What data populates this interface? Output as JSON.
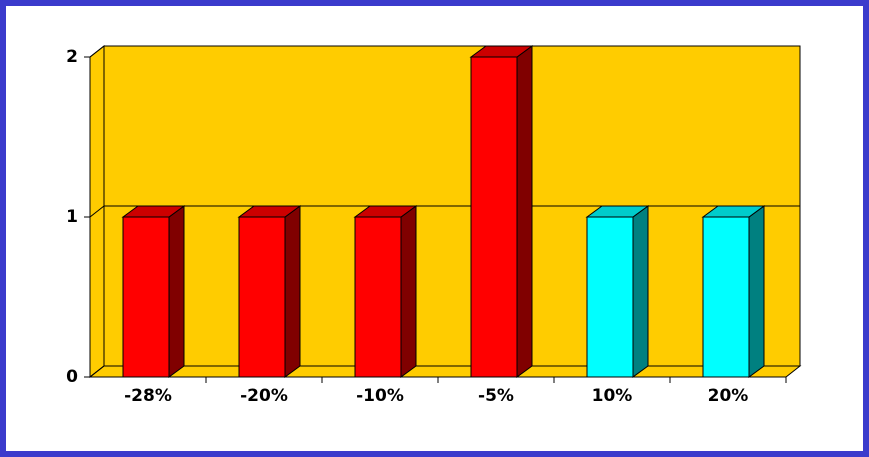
{
  "chart_data": {
    "type": "bar3d",
    "categories": [
      "-28%",
      "-20%",
      "-10%",
      "-5%",
      "10%",
      "20%"
    ],
    "values": [
      1,
      1,
      1,
      2,
      1,
      1
    ],
    "colors": [
      "#ff0000",
      "#ff0000",
      "#ff0000",
      "#ff0000",
      "#00ffff",
      "#00ffff"
    ],
    "side_colors": [
      "#800000",
      "#800000",
      "#800000",
      "#800000",
      "#008080",
      "#008080"
    ],
    "wall_color": "#ffcc00",
    "ylim": [
      0,
      2
    ],
    "yticks": [
      0,
      1,
      2
    ],
    "grid": true
  }
}
